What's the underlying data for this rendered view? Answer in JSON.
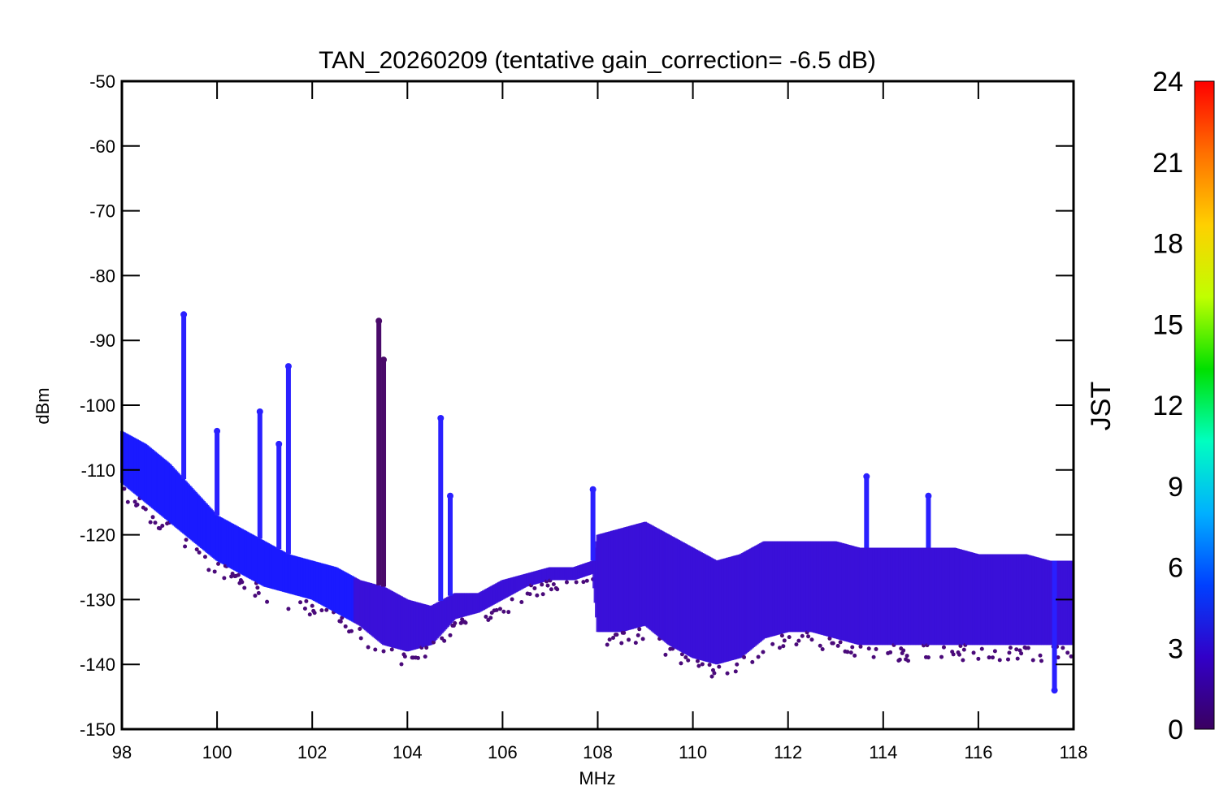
{
  "chart_data": {
    "type": "scatter",
    "title": "TAN_20260209 (tentative gain_correction= -6.5 dB)",
    "xlabel": "MHz",
    "ylabel": "dBm",
    "xlim": [
      98,
      118
    ],
    "ylim": [
      -150,
      -50
    ],
    "xticks": [
      98,
      100,
      102,
      104,
      106,
      108,
      110,
      112,
      114,
      116,
      118
    ],
    "yticks": [
      -50,
      -60,
      -70,
      -80,
      -90,
      -100,
      -110,
      -120,
      -130,
      -140,
      -150
    ],
    "colorbar": {
      "label": "JST",
      "range": [
        0,
        24
      ],
      "ticks": [
        0,
        3,
        6,
        9,
        12,
        15,
        18,
        21,
        24
      ],
      "colors": [
        "#3a0060",
        "#3200c8",
        "#0040ff",
        "#00b0ff",
        "#00ffc0",
        "#00e000",
        "#c0ff00",
        "#ffd000",
        "#ff7000",
        "#ff0000"
      ]
    },
    "series": [
      {
        "name": "floor_upper_envelope",
        "x": [
          98.0,
          98.5,
          99.0,
          99.5,
          100.0,
          100.5,
          101.0,
          101.5,
          102.0,
          102.5,
          103.0,
          103.5,
          104.0,
          104.5,
          105.0,
          105.5,
          106.0,
          106.5,
          107.0,
          107.5,
          107.9,
          108.0,
          108.5,
          109.0,
          109.5,
          110.0,
          110.5,
          111.0,
          111.5,
          112.0,
          112.5,
          113.0,
          113.5,
          114.0,
          114.5,
          115.0,
          115.5,
          116.0,
          116.5,
          117.0,
          117.5,
          118.0
        ],
        "y": [
          -104,
          -106,
          -109,
          -113,
          -117,
          -119,
          -121,
          -123,
          -124,
          -125,
          -127,
          -128,
          -130,
          -131,
          -129,
          -129,
          -127,
          -126,
          -125,
          -125,
          -124,
          -120,
          -119,
          -118,
          -120,
          -122,
          -124,
          -123,
          -121,
          -121,
          -121,
          -121,
          -122,
          -122,
          -122,
          -122,
          -122,
          -123,
          -123,
          -123,
          -124,
          -124
        ]
      },
      {
        "name": "floor_lower_envelope",
        "x": [
          98.0,
          98.5,
          99.0,
          99.5,
          100.0,
          100.5,
          101.0,
          101.5,
          102.0,
          102.5,
          103.0,
          103.5,
          104.0,
          104.5,
          105.0,
          105.5,
          106.0,
          106.5,
          107.0,
          107.5,
          107.9,
          108.0,
          108.5,
          109.0,
          109.5,
          110.0,
          110.5,
          111.0,
          111.5,
          112.0,
          112.5,
          113.0,
          113.5,
          114.0,
          114.5,
          115.0,
          115.5,
          116.0,
          116.5,
          117.0,
          117.5,
          118.0
        ],
        "y": [
          -112,
          -115,
          -118,
          -121,
          -124,
          -126,
          -128,
          -129,
          -130,
          -132,
          -134,
          -137,
          -138,
          -137,
          -133,
          -132,
          -130,
          -128,
          -127,
          -127,
          -126,
          -135,
          -135,
          -134,
          -137,
          -139,
          -140,
          -139,
          -136,
          -135,
          -135,
          -136,
          -137,
          -137,
          -137,
          -137,
          -137,
          -137,
          -137,
          -137,
          -137,
          -137
        ]
      },
      {
        "name": "spikes",
        "x": [
          99.3,
          100.0,
          100.9,
          101.3,
          101.5,
          103.4,
          103.5,
          104.7,
          104.9,
          107.9,
          113.65,
          114.95,
          117.6
        ],
        "y": [
          -86,
          -104,
          -101,
          -106,
          -94,
          -87,
          -93,
          -102,
          -114,
          -113,
          -111,
          -114,
          -144
        ]
      }
    ]
  }
}
